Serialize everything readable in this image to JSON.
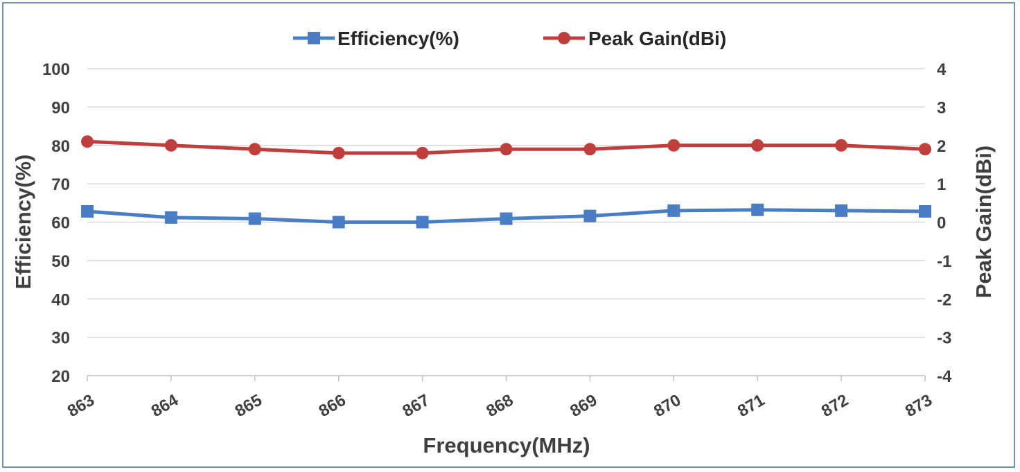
{
  "chart_data": {
    "type": "line",
    "x": [
      863,
      864,
      865,
      866,
      867,
      868,
      869,
      870,
      871,
      872,
      873
    ],
    "x_tick_labels": [
      "863",
      "864",
      "865",
      "866",
      "867",
      "868",
      "869",
      "870",
      "871",
      "872",
      "873"
    ],
    "xlabel": "Frequency(MHz)",
    "ylabel_left": "Efficiency(%)",
    "ylabel_right": "Peak Gain(dBi)",
    "ylim_left": [
      20,
      100
    ],
    "ylim_right": [
      -4,
      4
    ],
    "y_left_ticks": [
      "100",
      "90",
      "80",
      "70",
      "60",
      "50",
      "40",
      "30",
      "20"
    ],
    "y_right_ticks": [
      "4",
      "3",
      "2",
      "1",
      "0",
      "-1",
      "-2",
      "-3",
      "-4"
    ],
    "grid": true,
    "legend_position": "top",
    "series": [
      {
        "name": "Efficiency(%)",
        "axis": "left",
        "color": "#4a7ec4",
        "marker": "square",
        "values": [
          62.8,
          61.2,
          60.9,
          60.0,
          60.0,
          60.9,
          61.6,
          63.0,
          63.2,
          63.0,
          62.8
        ]
      },
      {
        "name": "Peak Gain(dBi)",
        "axis": "right",
        "color": "#bf3f3c",
        "marker": "circle",
        "values": [
          2.1,
          2.0,
          1.9,
          1.8,
          1.8,
          1.9,
          1.9,
          2.0,
          2.0,
          2.0,
          1.9
        ]
      }
    ]
  }
}
